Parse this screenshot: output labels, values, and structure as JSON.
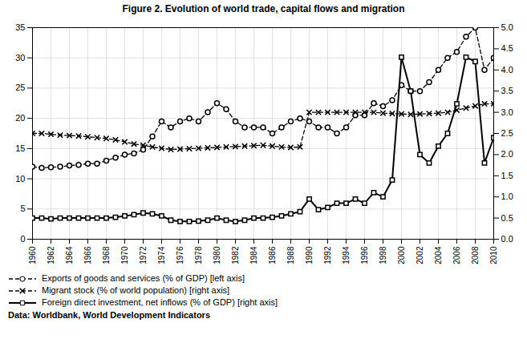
{
  "chart_data": {
    "type": "line",
    "title": "Figure 2. Evolution of world trade, capital flows and migration",
    "caption": "Data: Worldbank, World Development Indicators",
    "x": [
      1960,
      1961,
      1962,
      1963,
      1964,
      1965,
      1966,
      1967,
      1968,
      1969,
      1970,
      1971,
      1972,
      1973,
      1974,
      1975,
      1976,
      1977,
      1978,
      1979,
      1980,
      1981,
      1982,
      1983,
      1984,
      1985,
      1986,
      1987,
      1988,
      1989,
      1990,
      1991,
      1992,
      1993,
      1994,
      1995,
      1996,
      1997,
      1998,
      1999,
      2000,
      2001,
      2002,
      2003,
      2004,
      2005,
      2006,
      2007,
      2008,
      2009,
      2010
    ],
    "xlim": [
      1960,
      2010
    ],
    "xticks": [
      1960,
      1962,
      1964,
      1966,
      1968,
      1970,
      1972,
      1974,
      1976,
      1978,
      1980,
      1982,
      1984,
      1986,
      1988,
      1990,
      1992,
      1994,
      1996,
      1998,
      2000,
      2002,
      2004,
      2006,
      2008,
      2010
    ],
    "ylim": [
      0,
      35
    ],
    "yticks": [
      0,
      5,
      10,
      15,
      20,
      25,
      30,
      35
    ],
    "y2lim": [
      0.0,
      5.0
    ],
    "y2ticks": [
      {
        "value": 0,
        "label": "0.0"
      },
      0.5,
      {
        "value": 1,
        "label": "1.0"
      },
      1.5,
      {
        "value": 2,
        "label": "2.0"
      },
      2.5,
      {
        "value": 3,
        "label": "3.0"
      },
      3.5,
      {
        "value": 4,
        "label": "4.0"
      },
      4.5,
      {
        "value": 5,
        "label": "5.0"
      }
    ],
    "grid": true,
    "legend": "bottom",
    "series": [
      {
        "name": "Exports of goods and services (% of GDP) [left axis]",
        "axis": "y",
        "color": "black",
        "marker": "circle",
        "line_style": "dashed",
        "values": [
          12.0,
          11.8,
          11.9,
          12.0,
          12.2,
          12.3,
          12.5,
          12.5,
          13.0,
          13.5,
          14.0,
          14.2,
          14.8,
          17.0,
          19.5,
          18.5,
          19.5,
          20.0,
          19.5,
          21.0,
          22.5,
          21.5,
          19.5,
          18.5,
          18.5,
          18.5,
          17.5,
          18.5,
          19.5,
          20.0,
          19.5,
          18.5,
          18.5,
          17.5,
          18.5,
          20.5,
          20.5,
          22.5,
          22.0,
          23.0,
          25.5,
          24.5,
          24.5,
          26.0,
          28.0,
          30.0,
          31.0,
          33.5,
          35.0,
          28.0,
          30.0
        ]
      },
      {
        "name": "Migrant stock (% of world population) [right axis]",
        "axis": "y2",
        "color": "black",
        "marker": "x",
        "line_style": "dashed",
        "values": [
          2.5,
          2.5,
          2.48,
          2.46,
          2.45,
          2.44,
          2.42,
          2.4,
          2.38,
          2.35,
          2.3,
          2.25,
          2.22,
          2.18,
          2.15,
          2.12,
          2.13,
          2.14,
          2.15,
          2.16,
          2.17,
          2.18,
          2.19,
          2.2,
          2.21,
          2.22,
          2.2,
          2.18,
          2.17,
          2.18,
          3.0,
          3.0,
          3.0,
          3.0,
          3.0,
          3.0,
          3.0,
          3.0,
          2.98,
          2.97,
          2.96,
          2.95,
          2.96,
          2.97,
          2.98,
          3.0,
          3.05,
          3.1,
          3.15,
          3.2,
          3.2
        ]
      },
      {
        "name": "Foreign direct investment, net inflows (% of GDP) [right axis]",
        "axis": "y2",
        "color": "black",
        "marker": "square",
        "line_style": "solid",
        "values": [
          0.5,
          0.5,
          0.48,
          0.5,
          0.5,
          0.5,
          0.5,
          0.5,
          0.5,
          0.52,
          0.55,
          0.58,
          0.62,
          0.6,
          0.55,
          0.45,
          0.42,
          0.42,
          0.43,
          0.45,
          0.5,
          0.45,
          0.42,
          0.45,
          0.5,
          0.5,
          0.52,
          0.55,
          0.6,
          0.65,
          0.95,
          0.7,
          0.75,
          0.85,
          0.85,
          0.95,
          0.85,
          1.1,
          1.0,
          1.4,
          4.3,
          3.5,
          2.0,
          1.8,
          2.2,
          2.5,
          3.2,
          4.3,
          4.2,
          1.8,
          2.4
        ]
      }
    ]
  }
}
